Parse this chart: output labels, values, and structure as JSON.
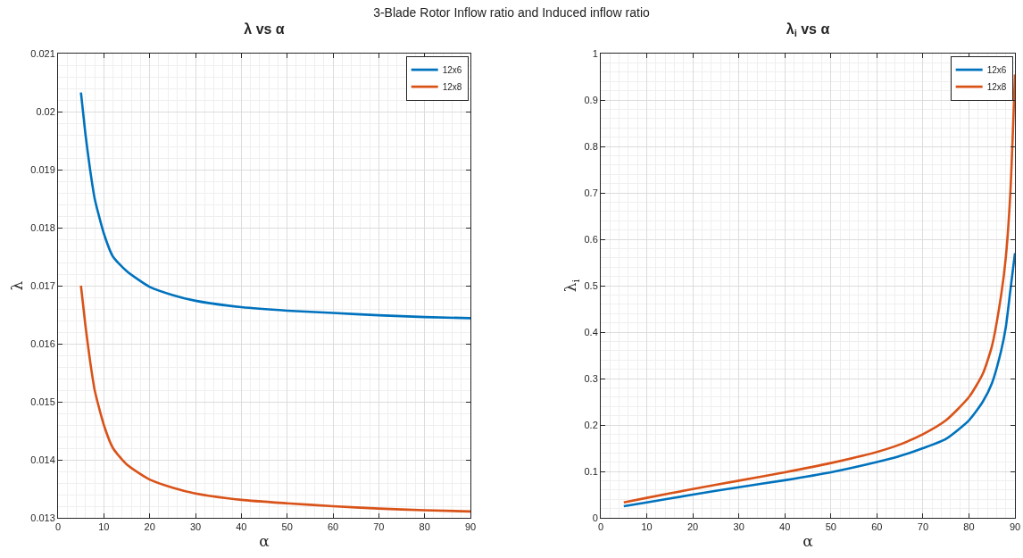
{
  "chart_data": [
    {
      "type": "line",
      "title": "λ vs α",
      "xlabel": "α",
      "ylabel": "λ",
      "annotations": [
        "3-Blade Rotor Inflow ratio and Induced inflow ratio"
      ],
      "x": [
        5,
        6,
        7,
        8,
        10,
        12,
        15,
        20,
        25,
        30,
        40,
        50,
        60,
        70,
        80,
        90
      ],
      "series": [
        {
          "name": "12x6",
          "color": "#0072bd",
          "values": [
            0.02033,
            0.0196,
            0.019,
            0.0185,
            0.0179,
            0.0175,
            0.01725,
            0.01698,
            0.01684,
            0.01674,
            0.01663,
            0.01657,
            0.01653,
            0.01649,
            0.01646,
            0.01644
          ]
        },
        {
          "name": "12x8",
          "color": "#d95319",
          "values": [
            0.017,
            0.0163,
            0.0157,
            0.0152,
            0.0146,
            0.0142,
            0.01392,
            0.01366,
            0.01352,
            0.01342,
            0.01331,
            0.01325,
            0.0132,
            0.01316,
            0.01313,
            0.01311
          ]
        }
      ],
      "xlim": [
        0,
        90
      ],
      "xticks": [
        0,
        10,
        20,
        30,
        40,
        50,
        60,
        70,
        80,
        90
      ],
      "ylim": [
        0.013,
        0.021
      ],
      "yticks": [
        0.013,
        0.014,
        0.015,
        0.016,
        0.017,
        0.018,
        0.019,
        0.02,
        0.021
      ],
      "grid": true,
      "legend": "top right",
      "line_style": "solid",
      "marker": "none"
    },
    {
      "type": "line",
      "title": "λ$_{i}$ vs α",
      "xlabel": "α",
      "ylabel": "λ$_{i}$",
      "x": [
        5,
        10,
        20,
        30,
        40,
        50,
        60,
        65,
        70,
        75,
        80,
        83,
        85,
        87,
        88,
        89,
        90
      ],
      "series": [
        {
          "name": "12x6",
          "color": "#0072bd",
          "values": [
            0.025,
            0.033,
            0.05,
            0.066,
            0.081,
            0.098,
            0.12,
            0.133,
            0.15,
            0.17,
            0.21,
            0.25,
            0.29,
            0.36,
            0.41,
            0.49,
            0.57
          ]
        },
        {
          "name": "12x8",
          "color": "#d95319",
          "values": [
            0.033,
            0.043,
            0.062,
            0.08,
            0.098,
            0.118,
            0.142,
            0.158,
            0.18,
            0.21,
            0.26,
            0.31,
            0.37,
            0.48,
            0.56,
            0.7,
            0.955
          ]
        }
      ],
      "xlim": [
        0,
        90
      ],
      "xticks": [
        0,
        10,
        20,
        30,
        40,
        50,
        60,
        70,
        80,
        90
      ],
      "ylim": [
        0,
        1
      ],
      "yticks": [
        0,
        0.1,
        0.2,
        0.3,
        0.4,
        0.5,
        0.6,
        0.7,
        0.8,
        0.9,
        1
      ],
      "grid": true,
      "legend": "top right",
      "line_style": "solid",
      "marker": "none"
    }
  ]
}
